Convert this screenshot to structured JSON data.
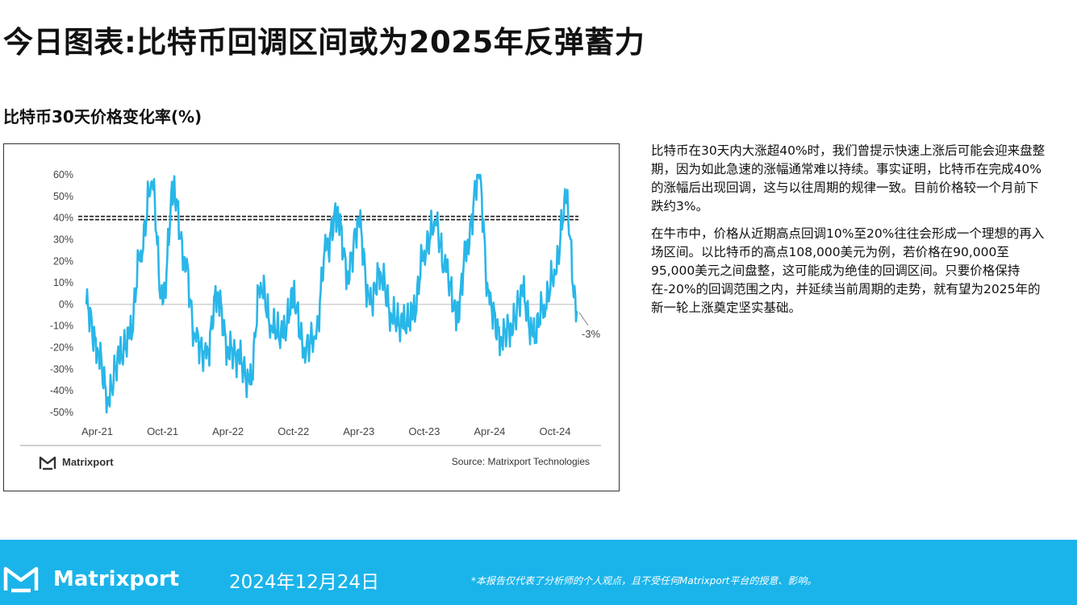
{
  "page": {
    "title": "今日图表:比特币回调区间或为2025年反弹蓄力",
    "chart_title": "比特币30天价格变化率(%)"
  },
  "chart_data": {
    "type": "line",
    "title": "比特币30天价格变化率(%)",
    "xlabel": "",
    "ylabel": "",
    "ylim": [
      -50,
      60
    ],
    "yticks": [
      "60%",
      "50%",
      "40%",
      "30%",
      "20%",
      "10%",
      "0%",
      "-10%",
      "-20%",
      "-30%",
      "-40%",
      "-50%"
    ],
    "ytick_values": [
      60,
      50,
      40,
      30,
      20,
      10,
      0,
      -10,
      -20,
      -30,
      -40,
      -50
    ],
    "xticks": [
      "Apr-21",
      "Oct-21",
      "Apr-22",
      "Oct-22",
      "Apr-23",
      "Oct-23",
      "Apr-24",
      "Oct-24"
    ],
    "xtick_values": [
      "2021-04",
      "2021-10",
      "2022-04",
      "2022-10",
      "2023-04",
      "2023-10",
      "2024-04",
      "2024-10"
    ],
    "x_range": [
      "2021-03",
      "2024-12"
    ],
    "reference_line": {
      "y": 40,
      "style": "dashed"
    },
    "zero_line": 0,
    "end_annotation": "-3%",
    "series": [
      {
        "color": "#29b6e8",
        "x": [
          "2021-03",
          "2021-04",
          "2021-05",
          "2021-06",
          "2021-07",
          "2021-08",
          "2021-09",
          "2021-10",
          "2021-11",
          "2021-12",
          "2022-01",
          "2022-02",
          "2022-03",
          "2022-04",
          "2022-05",
          "2022-06",
          "2022-07",
          "2022-08",
          "2022-09",
          "2022-10",
          "2022-11",
          "2022-12",
          "2023-01",
          "2023-02",
          "2023-03",
          "2023-04",
          "2023-05",
          "2023-06",
          "2023-07",
          "2023-08",
          "2023-09",
          "2023-10",
          "2023-11",
          "2023-12",
          "2024-01",
          "2024-02",
          "2024-03",
          "2024-04",
          "2024-05",
          "2024-06",
          "2024-07",
          "2024-08",
          "2024-09",
          "2024-10",
          "2024-11",
          "2024-12"
        ],
        "values": [
          0,
          -20,
          -43,
          -25,
          -15,
          25,
          57,
          0,
          53,
          22,
          -15,
          -25,
          5,
          -20,
          -25,
          -37,
          10,
          -10,
          -15,
          3,
          -20,
          -15,
          25,
          42,
          15,
          38,
          0,
          15,
          -5,
          -10,
          -5,
          25,
          38,
          15,
          -5,
          30,
          60,
          0,
          -15,
          -10,
          5,
          -15,
          0,
          15,
          47,
          -3
        ]
      }
    ]
  },
  "chart_footer": {
    "logo_text": "Matrixport",
    "source": "Source: Matrixport Technologies"
  },
  "text": {
    "para1": "比特币在30天内大涨超40%时，我们曾提示快速上涨后可能会迎来盘整期，因为如此急速的涨幅通常难以持续。事实证明，比特币在完成40%的涨幅后出现回调，这与以往周期的规律一致。目前价格较一个月前下跌约3%。",
    "para2": "在牛市中，价格从近期高点回调10%至20%往往会形成一个理想的再入场区间。以比特币的高点108,000美元为例，若价格在90,000至95,000美元之间盘整，这可能成为绝佳的回调区间。只要价格保持在-20%的回调范围之内，并延续当前周期的走势，就有望为2025年的新一轮上涨奠定坚实基础。"
  },
  "footer": {
    "brand": "Matrixport",
    "date": "2024年12月24日",
    "disclaimer": "*本报告仅代表了分析师的个人观点，且不受任何Matrixport平台的授意、影响。"
  },
  "colors": {
    "line": "#29b6e8",
    "footer_bg": "#1ab4ea",
    "axis_text": "#444444",
    "zero_line": "#bbbbbb",
    "reference_line": "#222222"
  }
}
